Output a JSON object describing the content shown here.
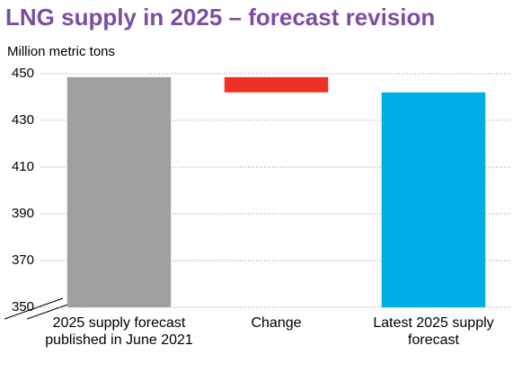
{
  "chart_data": {
    "type": "waterfall",
    "title": "LNG supply in 2025 – forecast revision",
    "y_label": "Million metric tons",
    "categories": [
      "2025 supply forecast published in June 2021",
      "Change",
      "Latest 2025 supply forecast"
    ],
    "values": [
      448.5,
      -6.5,
      442
    ],
    "measures": [
      "absolute",
      "relative",
      "total"
    ],
    "colors": [
      "#a0a0a0",
      "#ee3124",
      "#00aee6"
    ],
    "ylim": [
      350,
      450
    ],
    "yticks": [
      350,
      370,
      390,
      410,
      430,
      450
    ],
    "grid": true
  }
}
